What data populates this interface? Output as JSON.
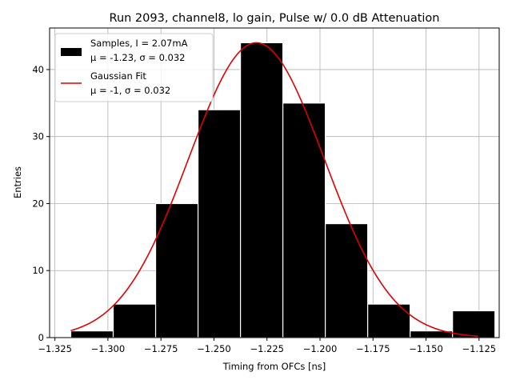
{
  "chart_data": {
    "type": "bar",
    "title": "Run 2093, channel8, lo gain, Pulse w/ 0.0 dB Attenuation",
    "xlabel": "Timing from OFCs [ns]",
    "ylabel": "Entries",
    "xlim": [
      -1.3275,
      -1.1155
    ],
    "ylim": [
      0,
      46.2
    ],
    "grid": true,
    "legend_position": "top-left",
    "bins": {
      "edges": [
        -1.3175,
        -1.2975,
        -1.2775,
        -1.2575,
        -1.2375,
        -1.2175,
        -1.1975,
        -1.1775,
        -1.1575,
        -1.1375,
        -1.1175
      ],
      "counts": [
        1,
        5,
        20,
        34,
        44,
        35,
        17,
        5,
        1,
        4
      ]
    },
    "fit": {
      "mu": -1.23,
      "sigma": 0.032,
      "amplitude": 44,
      "x_range": [
        -1.3175,
        -1.1255
      ]
    },
    "x_ticks": [
      {
        "value": -1.325,
        "label": "−1.325"
      },
      {
        "value": -1.3,
        "label": "−1.300"
      },
      {
        "value": -1.275,
        "label": "−1.275"
      },
      {
        "value": -1.25,
        "label": "−1.250"
      },
      {
        "value": -1.225,
        "label": "−1.225"
      },
      {
        "value": -1.2,
        "label": "−1.200"
      },
      {
        "value": -1.175,
        "label": "−1.175"
      },
      {
        "value": -1.15,
        "label": "−1.150"
      },
      {
        "value": -1.125,
        "label": "−1.125"
      }
    ],
    "y_ticks": [
      {
        "value": 0,
        "label": "0"
      },
      {
        "value": 10,
        "label": "10"
      },
      {
        "value": 20,
        "label": "20"
      },
      {
        "value": 30,
        "label": "30"
      },
      {
        "value": 40,
        "label": "40"
      }
    ],
    "legend": [
      {
        "series": "samples",
        "lines": [
          "Samples, I = 2.07mA",
          "μ = -1.23, σ = 0.032"
        ],
        "color": "#000000"
      },
      {
        "series": "fit",
        "lines": [
          "Gaussian Fit",
          "μ = -1, σ = 0.032"
        ],
        "color": "#e00000"
      }
    ]
  }
}
